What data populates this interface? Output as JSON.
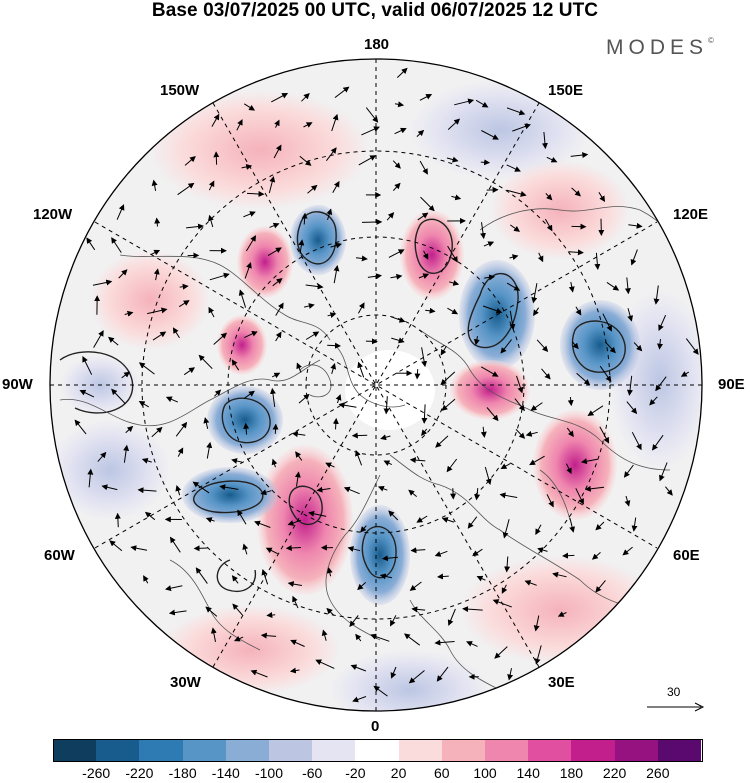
{
  "title": "Base 03/07/2025 00 UTC, valid 06/07/2025 12 UTC",
  "brand": "MODES",
  "brand_mark": "©",
  "longitude_labels": {
    "top": "180",
    "bottom": "0",
    "left": "90W",
    "right": "90E",
    "upper_left": "150W",
    "upper_right": "150E",
    "mid_upper_left": "120W",
    "mid_upper_right": "120E",
    "mid_lower_left": "60W",
    "mid_lower_right": "60E",
    "lower_left": "30W",
    "lower_right": "30E"
  },
  "reference_vector": {
    "value": "30"
  },
  "colorbar": {
    "colors": [
      "#0f3d5e",
      "#175c8d",
      "#2e7bb3",
      "#5795c7",
      "#8aadd6",
      "#bcc6e3",
      "#e4e4f2",
      "#ffffff",
      "#fbdcdc",
      "#f5b2bb",
      "#ef86ae",
      "#e04fa0",
      "#c21f8c",
      "#961281",
      "#5a0a6e"
    ],
    "tick_labels": [
      "-260",
      "-220",
      "-180",
      "-140",
      "-100",
      "-60",
      "-20",
      "20",
      "60",
      "100",
      "140",
      "180",
      "220",
      "260"
    ]
  },
  "anomalies": [
    {
      "kind": "neg",
      "level": 4,
      "name": "blue-anomaly-1"
    },
    {
      "kind": "pos",
      "level": 3,
      "name": "pink-anomaly-1"
    },
    {
      "kind": "pos",
      "level": 4,
      "name": "pink-anomaly-2"
    },
    {
      "kind": "neg",
      "level": 4,
      "name": "blue-anomaly-2"
    },
    {
      "kind": "neg",
      "level": 4,
      "name": "blue-anomaly-3"
    },
    {
      "kind": "pos",
      "level": 3,
      "name": "pink-anomaly-3"
    },
    {
      "kind": "pos",
      "level": 4,
      "name": "pink-anomaly-4"
    },
    {
      "kind": "pos",
      "level": 5,
      "name": "pink-anomaly-5"
    },
    {
      "kind": "neg",
      "level": 4,
      "name": "blue-anomaly-4"
    },
    {
      "kind": "neg",
      "level": 4,
      "name": "blue-anomaly-5"
    },
    {
      "kind": "neg",
      "level": 4,
      "name": "blue-anomaly-6"
    },
    {
      "kind": "pos",
      "level": 3,
      "name": "pink-anomaly-6"
    },
    {
      "kind": "neg",
      "level": 2,
      "name": "blue-anomaly-7"
    }
  ]
}
